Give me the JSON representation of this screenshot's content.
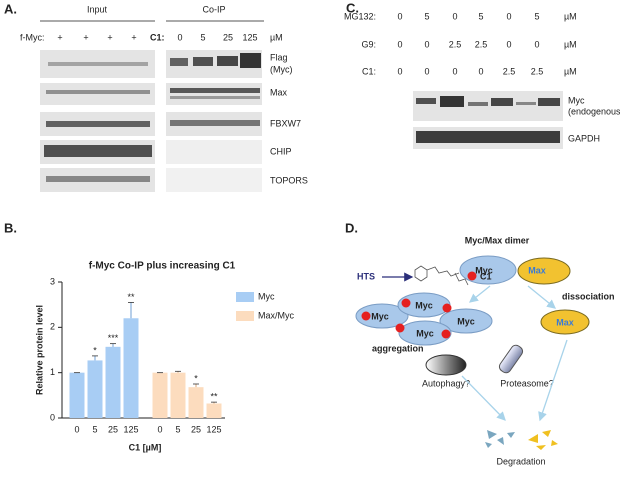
{
  "panel_a": {
    "label": "A.",
    "input_header": "Input",
    "coip_header": "Co-IP",
    "fmyc_label": "f-Myc:",
    "fmyc_marks": [
      "+",
      "+",
      "+",
      "+"
    ],
    "c1_label": "C1:",
    "c1_doses": [
      0,
      5,
      25,
      125
    ],
    "unit": "µM",
    "blots": [
      {
        "label": "Flag",
        "sublabel": "(Myc)"
      },
      {
        "label": "Max"
      },
      {
        "label": "FBXW7"
      },
      {
        "label": "CHIP"
      },
      {
        "label": "TOPORS"
      }
    ]
  },
  "panel_b": {
    "label": "B."
  },
  "chart_data": {
    "type": "bar",
    "title": "f-Myc Co-IP plus increasing C1",
    "x_label": "C1 [µM]",
    "y_label": "Relative protein level",
    "categories": [
      "0",
      "5",
      "25",
      "125"
    ],
    "series": [
      {
        "name": "Myc",
        "color": "#a8cdf4",
        "values": [
          1,
          1.27,
          1.57,
          2.2
        ],
        "errors": [
          0,
          0.1,
          0.07,
          0.35
        ],
        "significance": [
          null,
          "*",
          "***",
          "**"
        ]
      },
      {
        "name": "Max/Myc",
        "color": "#fcdcbe",
        "values": [
          1,
          1,
          0.68,
          0.32
        ],
        "errors": [
          0,
          0.03,
          0.07,
          0.03
        ],
        "significance": [
          null,
          null,
          "*",
          "**"
        ]
      }
    ],
    "ylim": [
      0,
      3
    ],
    "yticks": [
      0,
      1,
      2,
      3
    ],
    "legend": "upper right"
  },
  "panel_c": {
    "label": "C.",
    "rows": [
      {
        "label": "MG132:",
        "values": [
          0,
          5,
          0,
          5,
          0,
          5
        ],
        "unit": "µM"
      },
      {
        "label": "G9:",
        "values": [
          0,
          0,
          2.5,
          2.5,
          0,
          0
        ],
        "unit": "µM"
      },
      {
        "label": "C1:",
        "values": [
          0,
          0,
          0,
          0,
          2.5,
          2.5
        ],
        "unit": "µM"
      }
    ],
    "blots": [
      {
        "label": "Myc",
        "sublabel": "(endogenous)"
      },
      {
        "label": "GAPDH"
      }
    ]
  },
  "panel_d": {
    "label": "D.",
    "dimer_title": "Myc/Max dimer",
    "dimer_myc": "Myc",
    "dimer_max": "Max",
    "hts": "HTS",
    "c1": "C1",
    "dissociation": "dissociation",
    "aggregate": [
      "Myc",
      "Myc",
      "Myc",
      "Myc"
    ],
    "aggregation": "aggregation",
    "free_max": "Max",
    "autophagy": "Autophagy?",
    "proteasome": "Proteasome?",
    "degradation": "Degradation"
  }
}
